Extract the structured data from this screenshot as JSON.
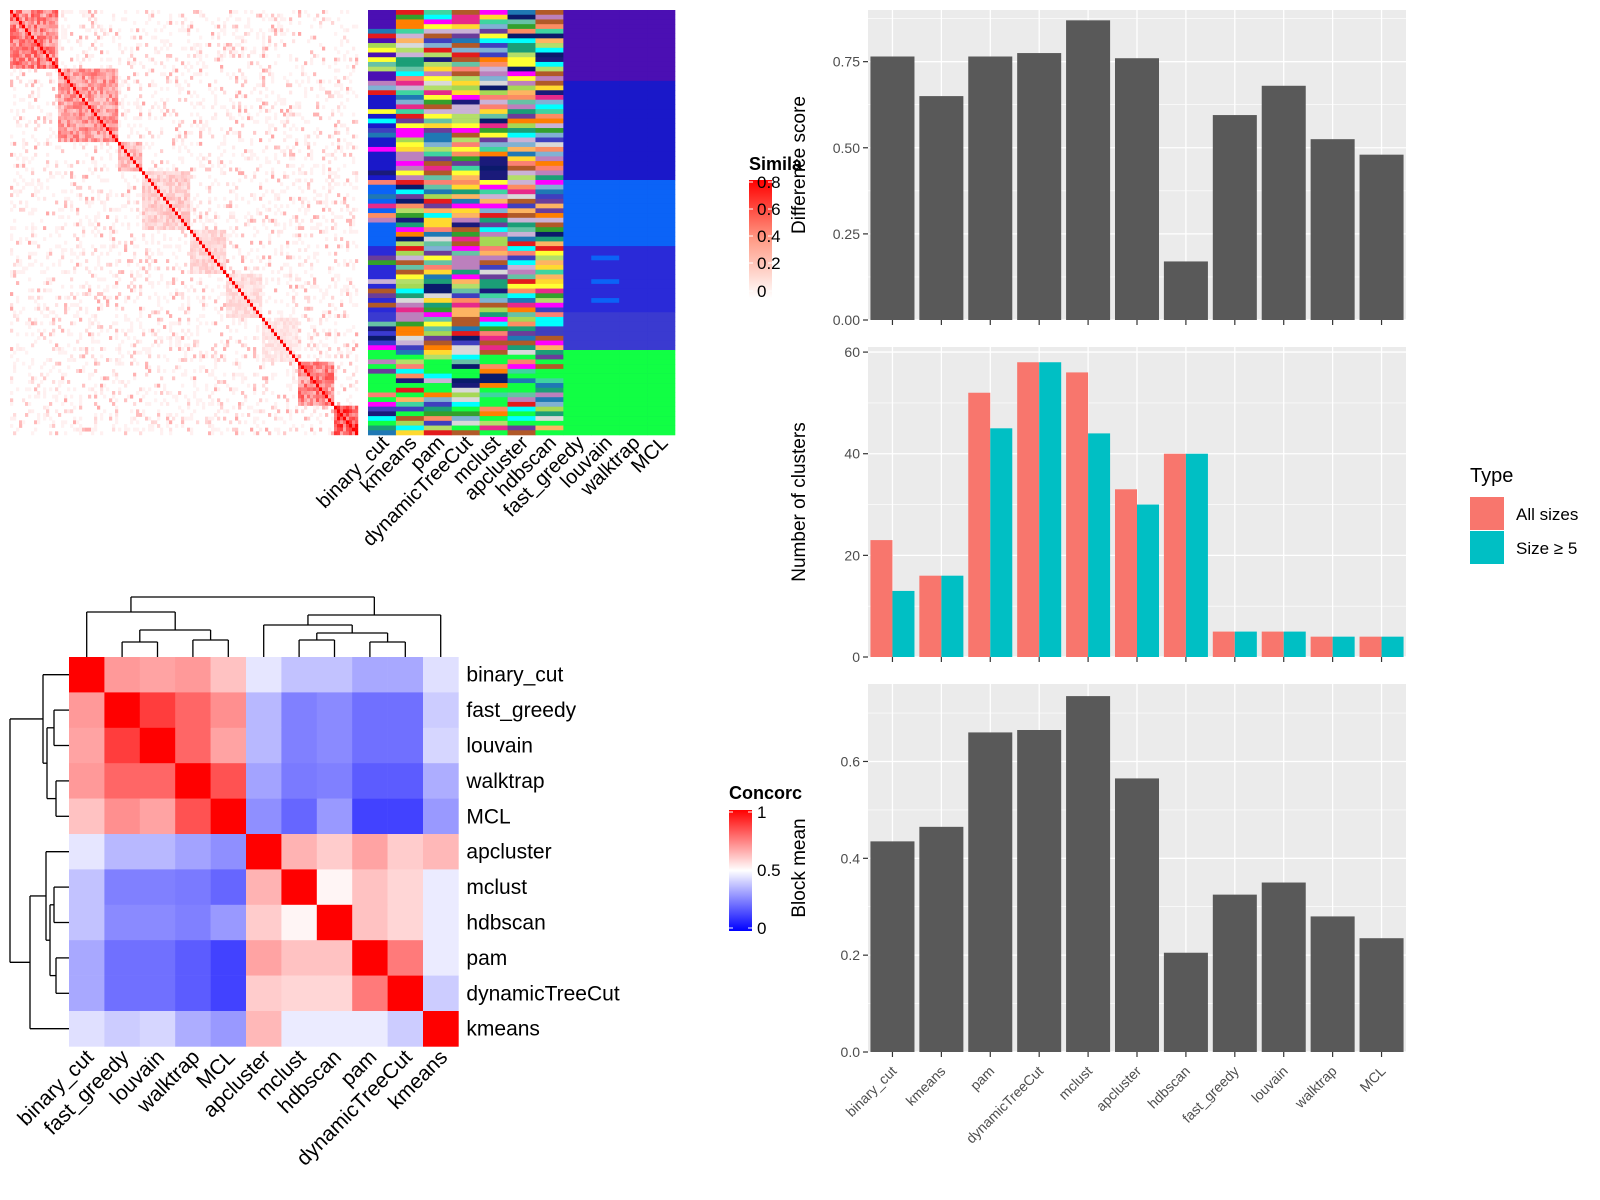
{
  "colors": {
    "panel_bg": "#ebebeb",
    "grid": "#ffffff",
    "bar_gray": "#595959",
    "all_sizes": "#f8766d",
    "size_ge5": "#00bfc4",
    "heat_red": "#ff0000",
    "heat_blue": "#0000ff"
  },
  "similarity_legend": {
    "title": "Simila",
    "ticks": [
      "0.8",
      "0.6",
      "0.4",
      "0.2",
      "0"
    ]
  },
  "concordance_legend": {
    "title": "Concorc",
    "ticks": [
      "1",
      "0.5",
      "0"
    ]
  },
  "type_legend": {
    "title": "Type",
    "entries": [
      "All sizes",
      "Size ≥ 5"
    ]
  },
  "class_columns": [
    "binary_cut",
    "kmeans",
    "pam",
    "dynamicTreeCut",
    "mclust",
    "apcluster",
    "hdbscan",
    "fast_greedy",
    "louvain",
    "walktrap",
    "MCL"
  ],
  "chart_data": [
    {
      "type": "heatmap",
      "title": "Concordance",
      "rows": [
        "binary_cut",
        "fast_greedy",
        "louvain",
        "walktrap",
        "MCL",
        "apcluster",
        "mclust",
        "hdbscan",
        "pam",
        "dynamicTreeCut",
        "kmeans"
      ],
      "cols": [
        "binary_cut",
        "fast_greedy",
        "louvain",
        "walktrap",
        "MCL",
        "apcluster",
        "mclust",
        "hdbscan",
        "pam",
        "dynamicTreeCut",
        "kmeans"
      ],
      "values": [
        [
          1.0,
          0.7,
          0.68,
          0.7,
          0.62,
          0.45,
          0.38,
          0.38,
          0.33,
          0.33,
          0.44
        ],
        [
          0.7,
          1.0,
          0.88,
          0.8,
          0.72,
          0.36,
          0.25,
          0.27,
          0.22,
          0.22,
          0.4
        ],
        [
          0.68,
          0.88,
          1.0,
          0.8,
          0.68,
          0.36,
          0.25,
          0.27,
          0.22,
          0.22,
          0.42
        ],
        [
          0.7,
          0.8,
          0.8,
          1.0,
          0.84,
          0.32,
          0.24,
          0.25,
          0.18,
          0.18,
          0.34
        ],
        [
          0.62,
          0.72,
          0.68,
          0.84,
          1.0,
          0.28,
          0.2,
          0.3,
          0.13,
          0.13,
          0.3
        ],
        [
          0.45,
          0.36,
          0.36,
          0.32,
          0.28,
          1.0,
          0.65,
          0.6,
          0.68,
          0.6,
          0.64
        ],
        [
          0.38,
          0.25,
          0.25,
          0.24,
          0.2,
          0.65,
          1.0,
          0.52,
          0.62,
          0.58,
          0.46
        ],
        [
          0.38,
          0.27,
          0.27,
          0.25,
          0.3,
          0.6,
          0.52,
          1.0,
          0.62,
          0.58,
          0.46
        ],
        [
          0.33,
          0.22,
          0.22,
          0.18,
          0.13,
          0.68,
          0.62,
          0.62,
          1.0,
          0.76,
          0.46
        ],
        [
          0.33,
          0.22,
          0.22,
          0.18,
          0.13,
          0.6,
          0.58,
          0.58,
          0.76,
          1.0,
          0.4
        ],
        [
          0.44,
          0.4,
          0.42,
          0.34,
          0.3,
          0.64,
          0.46,
          0.46,
          0.46,
          0.4,
          1.0
        ]
      ],
      "color_scale": [
        0,
        0.5,
        1
      ]
    },
    {
      "type": "bar",
      "ylabel": "Difference score",
      "categories": [
        "binary_cut",
        "kmeans",
        "pam",
        "dynamicTreeCut",
        "mclust",
        "apcluster",
        "hdbscan",
        "fast_greedy",
        "louvain",
        "walktrap",
        "MCL"
      ],
      "values": [
        0.765,
        0.65,
        0.765,
        0.775,
        0.87,
        0.76,
        0.17,
        0.595,
        0.68,
        0.525,
        0.48
      ],
      "ylim": [
        0,
        0.9
      ],
      "yticks": [
        "0.00",
        "0.25",
        "0.50",
        "0.75"
      ],
      "grid": true
    },
    {
      "type": "bar",
      "ylabel": "Number of clusters",
      "categories": [
        "binary_cut",
        "kmeans",
        "pam",
        "dynamicTreeCut",
        "mclust",
        "apcluster",
        "hdbscan",
        "fast_greedy",
        "louvain",
        "walktrap",
        "MCL"
      ],
      "series": [
        {
          "name": "All sizes",
          "values": [
            23,
            16,
            52,
            58,
            56,
            33,
            40,
            5,
            5,
            4,
            4
          ]
        },
        {
          "name": "Size ≥ 5",
          "values": [
            13,
            16,
            45,
            58,
            44,
            30,
            40,
            5,
            5,
            4,
            4
          ]
        }
      ],
      "ylim": [
        0,
        61
      ],
      "yticks": [
        "0",
        "20",
        "40",
        "60"
      ],
      "legend": "right",
      "grid": true
    },
    {
      "type": "bar",
      "ylabel": "Block mean",
      "categories": [
        "binary_cut",
        "kmeans",
        "pam",
        "dynamicTreeCut",
        "mclust",
        "apcluster",
        "hdbscan",
        "fast_greedy",
        "louvain",
        "walktrap",
        "MCL"
      ],
      "values": [
        0.435,
        0.465,
        0.66,
        0.665,
        0.735,
        0.565,
        0.205,
        0.325,
        0.35,
        0.28,
        0.235
      ],
      "ylim": [
        0,
        0.76
      ],
      "yticks": [
        "0.0",
        "0.2",
        "0.4",
        "0.6"
      ],
      "grid": true
    }
  ]
}
